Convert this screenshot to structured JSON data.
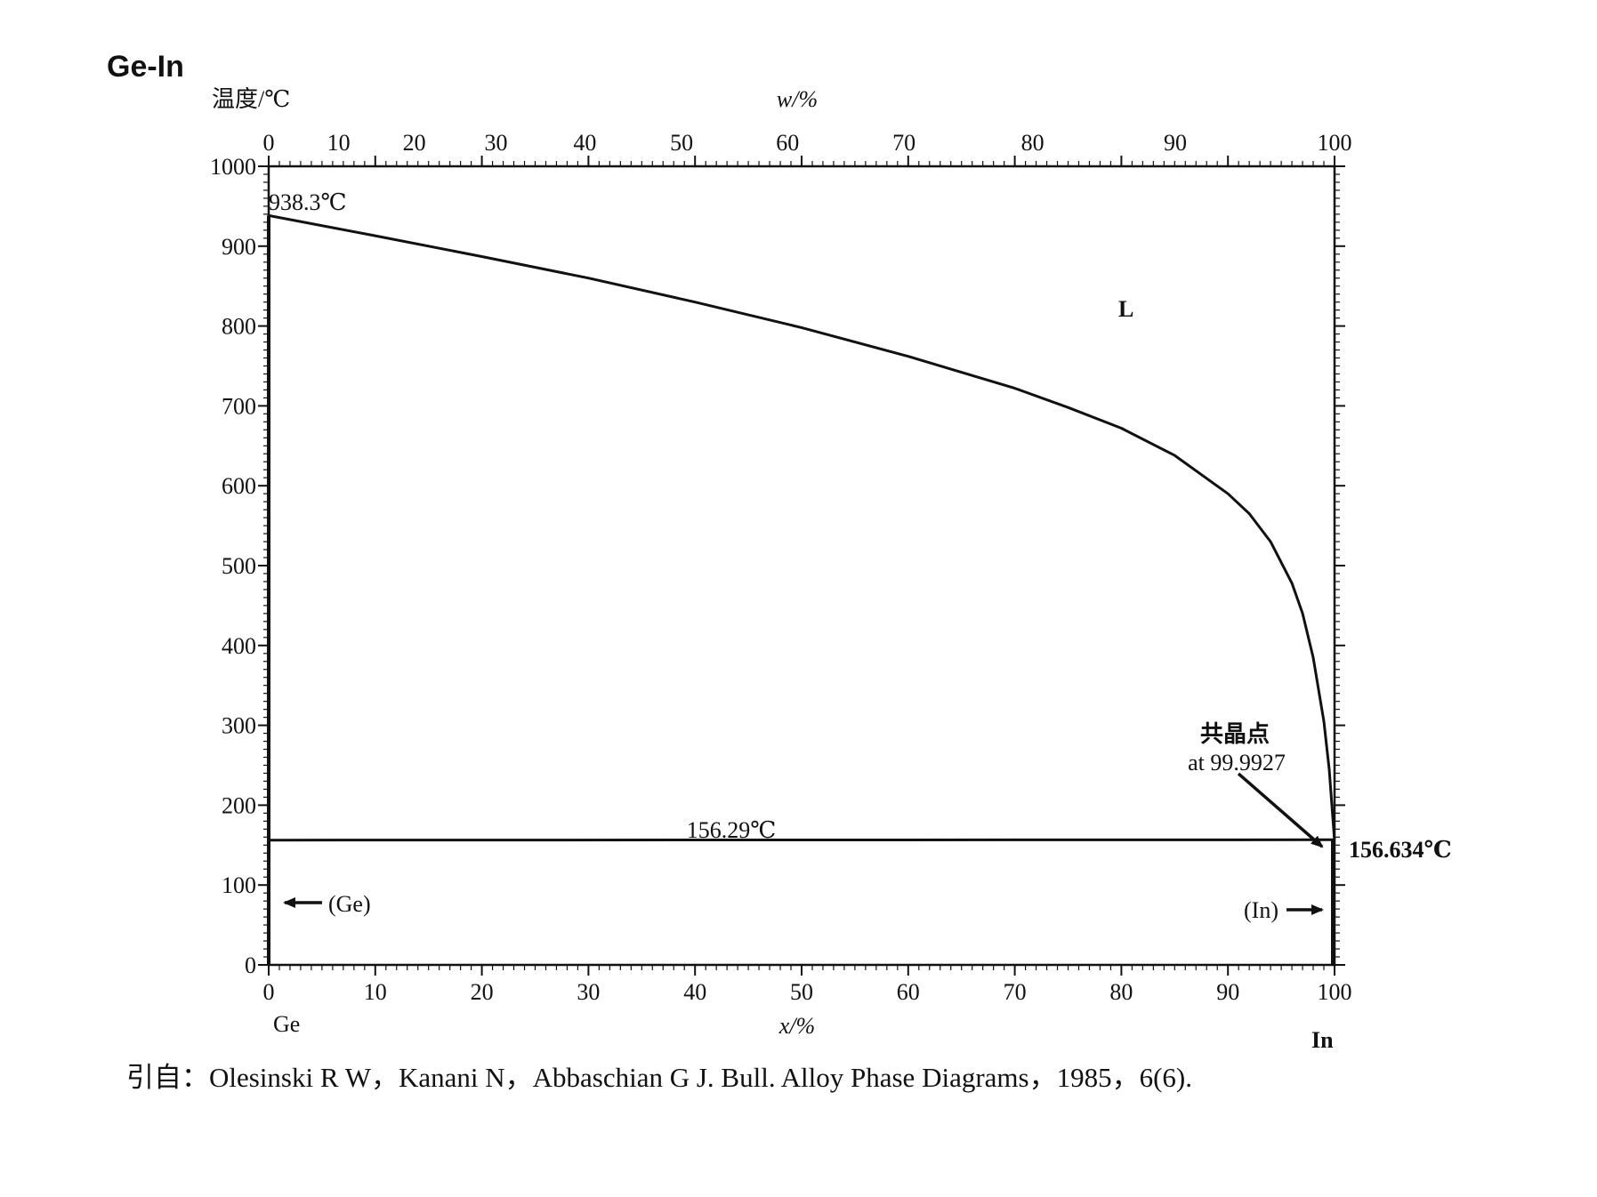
{
  "chart_data": {
    "type": "line",
    "title": "Ge-In",
    "ylabel": "温度/℃",
    "xlabel": "x/%",
    "x2label": "w/%",
    "ylim": [
      0,
      1000
    ],
    "xlim": [
      0,
      100
    ],
    "yticks": [
      0,
      100,
      200,
      300,
      400,
      500,
      600,
      700,
      800,
      900,
      1000
    ],
    "xticks": [
      0,
      10,
      20,
      30,
      40,
      50,
      60,
      70,
      80,
      90,
      100
    ],
    "x2ticks": [
      0,
      10,
      20,
      30,
      40,
      50,
      60,
      70,
      80,
      90,
      100
    ],
    "components": {
      "left": "Ge",
      "right": "In"
    },
    "series": [
      {
        "role": "liquidus",
        "x": [
          0,
          10,
          20,
          30,
          40,
          50,
          60,
          70,
          75,
          80,
          85,
          90,
          92,
          94,
          96,
          97,
          98,
          99,
          99.5,
          99.9927
        ],
        "y": [
          938.3,
          913,
          887,
          860,
          830,
          798,
          762,
          722,
          698,
          672,
          638,
          590,
          565,
          530,
          478,
          440,
          385,
          305,
          245,
          156.634
        ]
      },
      {
        "role": "eutectic",
        "x": [
          0,
          100
        ],
        "y": [
          156.29,
          156.634
        ]
      }
    ],
    "annotations": {
      "ge_melting": "938.3℃",
      "liquid_region": "L",
      "eutectic_temp_left": "156.29℃",
      "eutectic_temp_right": "156.634℃",
      "eutectic_point_label": "共晶点",
      "eutectic_point_value": "at 99.9927",
      "ge_solid": "(Ge)",
      "in_solid": "(In)"
    }
  },
  "citation": "引自：Olesinski R W，Kanani N，Abbaschian G J. Bull.  Alloy Phase Diagrams，1985，6(6)."
}
